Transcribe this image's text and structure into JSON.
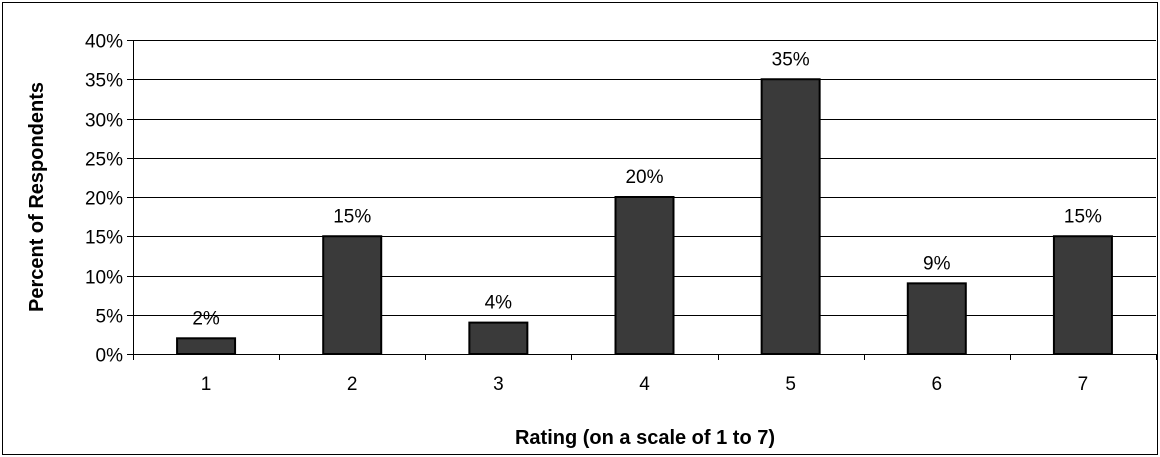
{
  "chart_data": {
    "type": "bar",
    "categories": [
      "1",
      "2",
      "3",
      "4",
      "5",
      "6",
      "7"
    ],
    "values": [
      2,
      15,
      4,
      20,
      35,
      9,
      15
    ],
    "value_labels": [
      "2%",
      "15%",
      "4%",
      "20%",
      "35%",
      "9%",
      "15%"
    ],
    "yticks": [
      0,
      5,
      10,
      15,
      20,
      25,
      30,
      35,
      40
    ],
    "ytick_labels": [
      "0%",
      "5%",
      "10%",
      "15%",
      "20%",
      "25%",
      "30%",
      "35%",
      "40%"
    ],
    "ylim": [
      0,
      40
    ],
    "xlabel": "Rating (on a scale of 1 to 7)",
    "ylabel": "Percent of Respondents",
    "grid": true,
    "legend": "none",
    "colors": {
      "bar_fill": "#3a3a3a",
      "bar_stroke": "#000000",
      "gridline": "#000000",
      "plot_background": "#ffffff"
    }
  }
}
